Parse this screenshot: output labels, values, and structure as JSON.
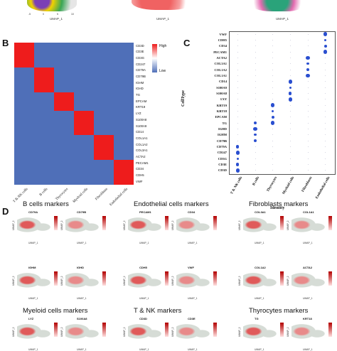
{
  "panel_letters": {
    "b": "B",
    "c": "C",
    "d": "D"
  },
  "top_strip": {
    "xlabel": "UMAP_1",
    "ticks": [
      "-5",
      "0",
      "5",
      "10"
    ]
  },
  "heatmap": {
    "rows": [
      "CD3D",
      "CD3E",
      "CD3G",
      "CD247",
      "CD79A",
      "CD79B",
      "IGHM",
      "IGHD",
      "TG",
      "EPCAM",
      "KRT19",
      "LYZ",
      "S100A8",
      "S100A9",
      "CD14",
      "COL1A1",
      "COL1A2",
      "COL3A1",
      "ACTA2",
      "PECAM1",
      "CD34",
      "CDH5",
      "VWF"
    ],
    "columns": [
      "T & NK cells",
      "B cells",
      "Thyrocytes",
      "Myeloid cells",
      "Fibroblasts",
      "Endothelial cells"
    ],
    "legend_high": "High",
    "legend_low": "Low",
    "high_color": "#ee1c1c",
    "low_color": "#4f6fb8"
  },
  "dotplot": {
    "ylabel": "CellType",
    "xlabel": "Identity",
    "genes": [
      "VWF",
      "CDH5",
      "CD34",
      "PECAM1",
      "ACTA2",
      "COL3A1",
      "COL1A2",
      "COL1A1",
      "CD14",
      "S100A9",
      "S100A8",
      "LYZ",
      "KRT19",
      "KRT18",
      "EPCAM",
      "TG",
      "IGHD",
      "IGHM",
      "CD79B",
      "CD79A",
      "CD247",
      "CD3G",
      "CD3E",
      "CD3D"
    ],
    "identities": [
      "T & NK cells",
      "B cells",
      "Thyrocytes",
      "Myeloid cells",
      "Fibroblasts",
      "Endothelial cells"
    ],
    "dot_color": "#2a4fd0"
  },
  "markers": {
    "groups": [
      {
        "title": "B cells markers",
        "genes": [
          "CD79A",
          "CD79B",
          "IGHM",
          "IGHD"
        ]
      },
      {
        "title": "Endothelial cells markers",
        "genes": [
          "PECAM1",
          "CD34",
          "CDH5",
          "VWF"
        ]
      },
      {
        "title": "Fibroblasts markers",
        "genes": [
          "COL3A1",
          "COL1A1",
          "COL1A2",
          "ACTA2"
        ]
      },
      {
        "title": "Myeloid cells markers",
        "genes": [
          "LYZ",
          "S100A8"
        ]
      },
      {
        "title": "T & NK markers",
        "genes": [
          "CD3D",
          "CD3E"
        ]
      },
      {
        "title": "Thyrocytes markers",
        "genes": [
          "TG",
          "KRT18"
        ]
      }
    ],
    "axis_x": "UMAP_1",
    "axis_y": "UMAP_2"
  }
}
